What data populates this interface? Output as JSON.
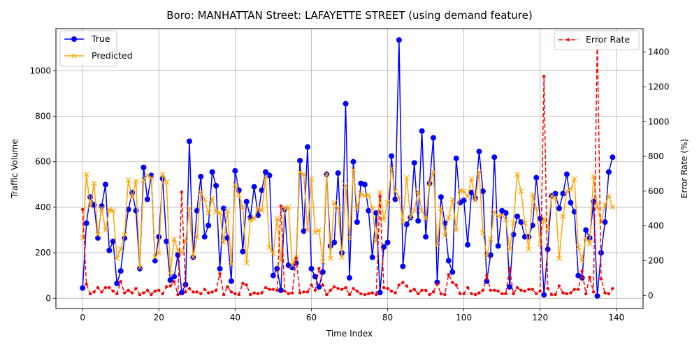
{
  "chart_data": {
    "type": "line",
    "title": "Boro: MANHATTAN Street: LAFAYETTE STREET (using demand feature)",
    "xlabel": "Time Index",
    "ylabel": "Traffic Volume",
    "y2label": "Error Rate (%)",
    "xlim": [
      -7,
      147
    ],
    "ylim": [
      -45,
      1185
    ],
    "y2lim": [
      -75,
      1535
    ],
    "xticks": [
      0,
      20,
      40,
      60,
      80,
      100,
      120,
      140
    ],
    "yticks": [
      0,
      200,
      400,
      600,
      800,
      1000
    ],
    "y2ticks": [
      0,
      200,
      400,
      600,
      800,
      1000,
      1200,
      1400
    ],
    "grid": true,
    "legend_left": "upper-left",
    "legend_right": "upper-right",
    "colors": {
      "true": "#0000ff",
      "predicted": "#ffa500",
      "error": "#ff0000"
    },
    "series": [
      {
        "name": "True",
        "axis": "left",
        "values": [
          45,
          330,
          445,
          410,
          265,
          405,
          500,
          210,
          250,
          65,
          120,
          265,
          390,
          465,
          385,
          130,
          575,
          435,
          540,
          165,
          270,
          525,
          250,
          80,
          95,
          190,
          25,
          60,
          690,
          180,
          385,
          535,
          270,
          320,
          555,
          495,
          130,
          395,
          265,
          75,
          560,
          475,
          205,
          425,
          355,
          490,
          365,
          475,
          555,
          540,
          100,
          130,
          35,
          390,
          145,
          135,
          155,
          605,
          295,
          665,
          130,
          95,
          50,
          115,
          545,
          230,
          245,
          550,
          200,
          855,
          90,
          600,
          335,
          505,
          500,
          385,
          180,
          375,
          25,
          225,
          245,
          625,
          435,
          1135,
          140,
          325,
          355,
          595,
          340,
          735,
          270,
          505,
          705,
          70,
          445,
          330,
          165,
          115,
          615,
          420,
          430,
          235,
          465,
          440,
          645,
          470,
          75,
          190,
          620,
          230,
          385,
          375,
          50,
          280,
          360,
          335,
          270,
          270,
          320,
          530,
          350,
          15,
          215,
          450,
          460,
          395,
          460,
          545,
          420,
          380,
          100,
          90,
          300,
          265,
          425,
          10,
          200,
          335,
          555,
          620
        ]
      },
      {
        "name": "Predicted",
        "axis": "left",
        "values": [
          265,
          545,
          405,
          505,
          280,
          395,
          300,
          390,
          385,
          175,
          215,
          280,
          520,
          445,
          515,
          135,
          520,
          540,
          530,
          180,
          200,
          545,
          510,
          110,
          260,
          210,
          200,
          250,
          395,
          180,
          270,
          465,
          435,
          375,
          440,
          380,
          375,
          245,
          385,
          150,
          500,
          455,
          400,
          155,
          345,
          350,
          395,
          385,
          530,
          225,
          195,
          350,
          165,
          395,
          400,
          145,
          180,
          555,
          545,
          300,
          525,
          290,
          300,
          160,
          545,
          175,
          420,
          395,
          180,
          495,
          265,
          565,
          395,
          460,
          450,
          455,
          395,
          250,
          465,
          345,
          420,
          570,
          470,
          445,
          335,
          530,
          355,
          385,
          470,
          385,
          350,
          505,
          555,
          235,
          395,
          275,
          355,
          435,
          300,
          475,
          470,
          445,
          525,
          430,
          555,
          290,
          185,
          260,
          380,
          360,
          365,
          345,
          215,
          330,
          545,
          470,
          330,
          215,
          455,
          395,
          240,
          350,
          305,
          450,
          440,
          175,
          360,
          470,
          480,
          525,
          225,
          165,
          265,
          240,
          535,
          400,
          335,
          410,
          450,
          400
        ]
      },
      {
        "name": "Error Rate",
        "axis": "right",
        "values": [
          495,
          65,
          10,
          20,
          45,
          20,
          45,
          45,
          25,
          10,
          80,
          15,
          30,
          15,
          40,
          5,
          15,
          30,
          5,
          25,
          30,
          10,
          50,
          55,
          80,
          5,
          595,
          20,
          40,
          20,
          20,
          10,
          35,
          15,
          20,
          30,
          125,
          5,
          50,
          20,
          10,
          5,
          70,
          60,
          5,
          15,
          10,
          15,
          45,
          35,
          35,
          30,
          515,
          25,
          10,
          15,
          215,
          15,
          20,
          20,
          60,
          30,
          155,
          60,
          5,
          30,
          50,
          40,
          35,
          45,
          5,
          40,
          25,
          10,
          5,
          10,
          15,
          5,
          570,
          45,
          40,
          25,
          15,
          60,
          75,
          55,
          25,
          35,
          10,
          30,
          30,
          5,
          20,
          65,
          10,
          5,
          120,
          75,
          60,
          10,
          10,
          45,
          10,
          5,
          15,
          30,
          115,
          30,
          30,
          25,
          10,
          10,
          155,
          10,
          45,
          30,
          25,
          35,
          35,
          10,
          25,
          1260,
          40,
          5,
          5,
          55,
          15,
          10,
          15,
          35,
          35,
          140,
          10,
          105,
          20,
          1490,
          95,
          15,
          10,
          40
        ]
      }
    ]
  }
}
